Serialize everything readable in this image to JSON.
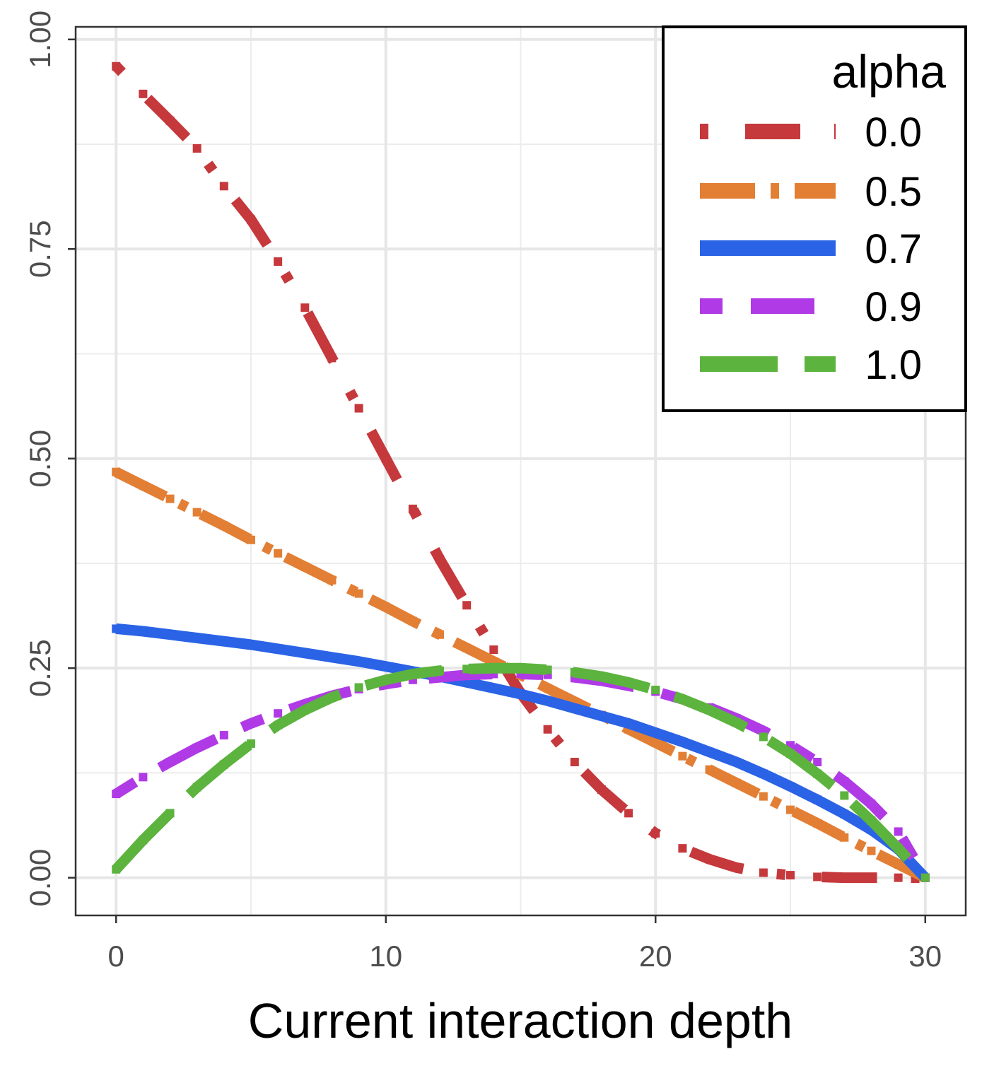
{
  "chart_data": {
    "type": "line",
    "title": "",
    "xlabel": "Current interaction depth",
    "ylabel": "",
    "xlim": [
      -1.5,
      31.5
    ],
    "ylim": [
      -0.045,
      1.015
    ],
    "x_ticks": [
      0,
      10,
      20,
      30
    ],
    "x_tick_labels": [
      "0",
      "10",
      "20",
      "30"
    ],
    "y_ticks": [
      0,
      0.25,
      0.5,
      0.75,
      1.0
    ],
    "y_tick_labels": [
      "0.00",
      "0.25",
      "0.50",
      "0.75",
      "1.00"
    ],
    "grid": true,
    "legend": {
      "title": "alpha",
      "position": "top-right"
    },
    "x": [
      0,
      1,
      2,
      3,
      4,
      5,
      6,
      7,
      8,
      9,
      10,
      11,
      12,
      13,
      14,
      15,
      16,
      17,
      18,
      19,
      20,
      21,
      22,
      23,
      24,
      25,
      26,
      27,
      28,
      29,
      30
    ],
    "series": [
      {
        "name": "0.0",
        "color": "#c5383c",
        "dash": "dot-long",
        "values": [
          0.968,
          0.935,
          0.903,
          0.87,
          0.825,
          0.785,
          0.735,
          0.68,
          0.62,
          0.56,
          0.5,
          0.44,
          0.38,
          0.325,
          0.272,
          0.22,
          0.177,
          0.138,
          0.105,
          0.077,
          0.053,
          0.035,
          0.022,
          0.012,
          0.006,
          0.003,
          0.001,
          0.0,
          0.0,
          0.0,
          0.0
        ]
      },
      {
        "name": "0.5",
        "color": "#e27f35",
        "dash": "long-dot",
        "values": [
          0.484,
          0.468,
          0.452,
          0.436,
          0.42,
          0.403,
          0.387,
          0.371,
          0.355,
          0.339,
          0.323,
          0.306,
          0.29,
          0.274,
          0.258,
          0.242,
          0.226,
          0.21,
          0.194,
          0.177,
          0.161,
          0.145,
          0.129,
          0.113,
          0.097,
          0.081,
          0.065,
          0.048,
          0.032,
          0.016,
          0.0
        ]
      },
      {
        "name": "0.7",
        "color": "#2b63e6",
        "dash": "solid",
        "values": [
          0.297,
          0.294,
          0.29,
          0.286,
          0.282,
          0.278,
          0.273,
          0.268,
          0.263,
          0.258,
          0.252,
          0.246,
          0.24,
          0.233,
          0.226,
          0.219,
          0.211,
          0.202,
          0.193,
          0.184,
          0.173,
          0.162,
          0.15,
          0.138,
          0.124,
          0.109,
          0.093,
          0.076,
          0.057,
          0.034,
          0.0
        ]
      },
      {
        "name": "0.9",
        "color": "#b03ae6",
        "dash": "short-long",
        "values": [
          0.1,
          0.12,
          0.138,
          0.155,
          0.17,
          0.184,
          0.196,
          0.207,
          0.217,
          0.225,
          0.231,
          0.236,
          0.239,
          0.242,
          0.243,
          0.243,
          0.242,
          0.239,
          0.235,
          0.229,
          0.222,
          0.213,
          0.203,
          0.19,
          0.175,
          0.158,
          0.138,
          0.115,
          0.088,
          0.055,
          0.0
        ]
      },
      {
        "name": "1.0",
        "color": "#5cb33e",
        "dash": "long",
        "values": [
          0.01,
          0.045,
          0.077,
          0.108,
          0.135,
          0.16,
          0.182,
          0.2,
          0.215,
          0.227,
          0.236,
          0.243,
          0.247,
          0.249,
          0.25,
          0.25,
          0.248,
          0.245,
          0.24,
          0.233,
          0.224,
          0.213,
          0.2,
          0.185,
          0.168,
          0.148,
          0.124,
          0.098,
          0.068,
          0.035,
          0.0
        ]
      }
    ]
  }
}
